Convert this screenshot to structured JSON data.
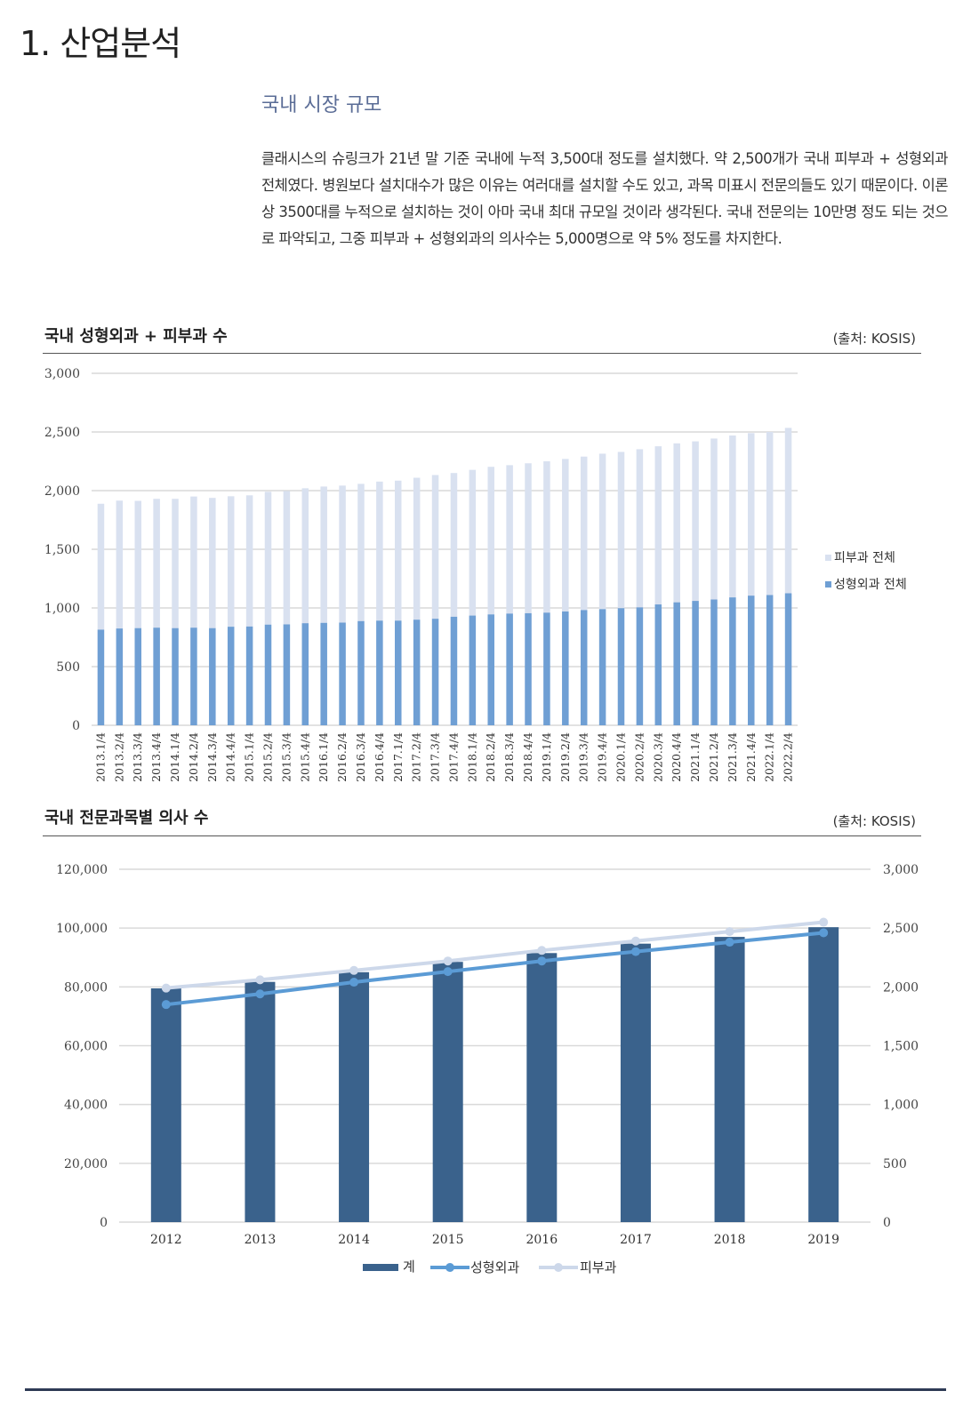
{
  "heading": "1. 산업분석",
  "section_title": "국내 시장 규모",
  "paragraph": "클래시스의 슈링크가 21년 말 기준 국내에 누적 3,500대 정도를 설치했다. 약 2,500개가 국내 피부과 + 성형외과 전체였다. 병원보다 설치대수가 많은 이유는 여러대를 설치할 수도 있고, 과목 미표시 전문의들도 있기 때문이다. 이론상 3500대를 누적으로 설치하는 것이 아마 국내 최대 규모일 것이라 생각된다. 국내 전문의는 10만명 정도 되는 것으로 파악되고, 그중 피부과 + 성형외과의 의사수는 5,000명으로 약 5% 정도를 차지한다.",
  "colors": {
    "heading_accent": "#5a6c96",
    "derm_bar": "#d9e1f0",
    "plastic_bar": "#6f9fd4",
    "total_bar": "#3a628c",
    "plastic_line": "#5b9bd5",
    "derm_line": "#cdd8ea",
    "grid": "#d9d9d9"
  },
  "chart_data": [
    {
      "type": "bar",
      "stacked": true,
      "title": "국내 성형외과 + 피부과 수",
      "source": "(출처:  KOSIS)",
      "categories": [
        "2013.1/4",
        "2013.2/4",
        "2013.3/4",
        "2013.4/4",
        "2014.1/4",
        "2014.2/4",
        "2014.3/4",
        "2014.4/4",
        "2015.1/4",
        "2015.2/4",
        "2015.3/4",
        "2015.4/4",
        "2016.1/4",
        "2016.2/4",
        "2016.3/4",
        "2016.4/4",
        "2017.1/4",
        "2017.2/4",
        "2017.3/4",
        "2017.4/4",
        "2018.1/4",
        "2018.2/4",
        "2018.3/4",
        "2018.4/4",
        "2019.1/4",
        "2019.2/4",
        "2019.3/4",
        "2019.4/4",
        "2020.1/4",
        "2020.2/4",
        "2020.3/4",
        "2020.4/4",
        "2021.1/4",
        "2021.2/4",
        "2021.3/4",
        "2021.4/4",
        "2022.1/4",
        "2022.2/4"
      ],
      "series": [
        {
          "name": "성형외과  전체",
          "values": [
            815,
            825,
            828,
            832,
            828,
            832,
            828,
            840,
            842,
            858,
            860,
            870,
            873,
            875,
            888,
            892,
            892,
            900,
            908,
            925,
            935,
            945,
            952,
            955,
            960,
            970,
            982,
            990,
            998,
            1005,
            1030,
            1048,
            1060,
            1072,
            1090,
            1105,
            1110,
            1125
          ]
        },
        {
          "name": "피부과  전체",
          "values": [
            1073,
            1090,
            1085,
            1098,
            1102,
            1118,
            1110,
            1112,
            1118,
            1132,
            1136,
            1150,
            1162,
            1168,
            1170,
            1185,
            1193,
            1210,
            1225,
            1225,
            1242,
            1258,
            1265,
            1278,
            1290,
            1300,
            1308,
            1325,
            1332,
            1348,
            1348,
            1355,
            1360,
            1372,
            1380,
            1385,
            1390,
            1410
          ]
        }
      ],
      "ylim": [
        0,
        3000
      ],
      "yticks": [
        "3,000",
        "2,500",
        "2,000",
        "1,500",
        "1,000",
        "500",
        "0"
      ],
      "legend": "right"
    },
    {
      "type": "bar",
      "title": "국내 전문과목별 의사 수",
      "source": "(출처:  KOSIS)",
      "categories": [
        "2012",
        "2013",
        "2014",
        "2015",
        "2016",
        "2017",
        "2018",
        "2019"
      ],
      "bars": {
        "name": "계",
        "values": [
          79500,
          81700,
          85000,
          88500,
          91500,
          94700,
          97000,
          100300
        ],
        "axis": "left",
        "ylim": [
          0,
          120000
        ]
      },
      "lines": [
        {
          "name": "성형외과",
          "values": [
            1850,
            1940,
            2040,
            2130,
            2220,
            2300,
            2380,
            2460
          ],
          "axis": "right"
        },
        {
          "name": "피부과",
          "values": [
            1990,
            2060,
            2140,
            2220,
            2310,
            2390,
            2470,
            2550
          ],
          "axis": "right"
        }
      ],
      "y_left_ticks": [
        "120,000",
        "100,000",
        "80,000",
        "60,000",
        "40,000",
        "20,000",
        "0"
      ],
      "y_right_ticks": [
        "3,000",
        "2,500",
        "2,000",
        "1,500",
        "1,000",
        "500",
        "0"
      ],
      "y_right_lim": [
        0,
        3000
      ],
      "legend": "bottom"
    }
  ]
}
